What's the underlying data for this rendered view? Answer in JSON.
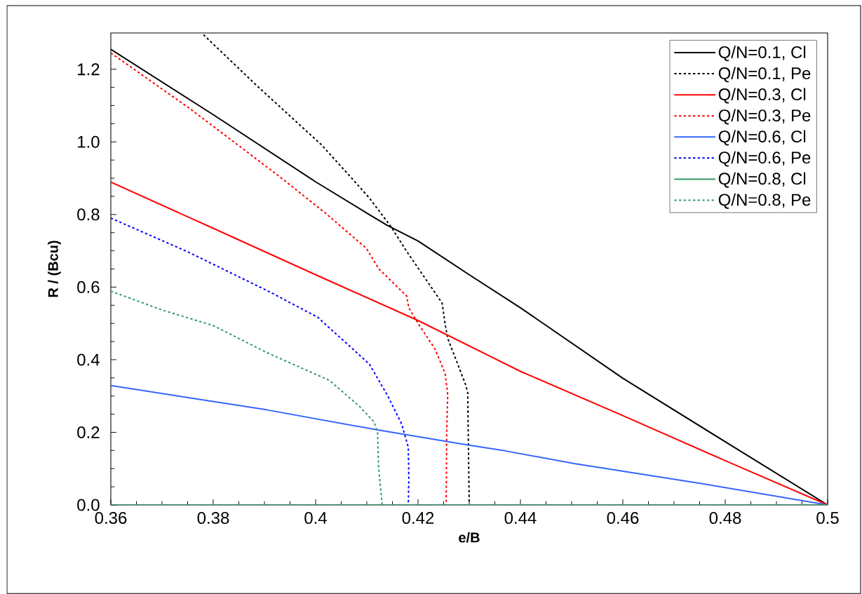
{
  "chart_data": {
    "type": "line",
    "xlabel": "e/B",
    "ylabel": "R / (Bcu)",
    "xlim": [
      0.36,
      0.5
    ],
    "ylim": [
      0,
      1.3
    ],
    "xticks": [
      0.36,
      0.38,
      0.4,
      0.42,
      0.44,
      0.46,
      0.48,
      0.5
    ],
    "yticks": [
      {
        "value": 0,
        "label": "0.0"
      },
      {
        "value": 0.2,
        "label": "0.2"
      },
      {
        "value": 0.4,
        "label": "0.4"
      },
      {
        "value": 0.6,
        "label": "0.6"
      },
      {
        "value": 0.8,
        "label": "0.8"
      },
      {
        "value": 1.0,
        "label": "1.0"
      },
      {
        "value": 1.2,
        "label": "1.2"
      }
    ],
    "grid": false,
    "legend": "top right",
    "marker": "none",
    "series": [
      {
        "name": "Q/N=0.1, Cl",
        "color": "#000000",
        "line_style": "solid",
        "x": [
          0.36,
          0.38,
          0.4,
          0.41,
          0.414,
          0.42,
          0.43,
          0.44,
          0.46,
          0.48,
          0.5
        ],
        "values": [
          1.255,
          1.075,
          0.89,
          0.804,
          0.77,
          0.727,
          0.634,
          0.543,
          0.349,
          0.174,
          0
        ]
      },
      {
        "name": "Q/N=0.1, Pe",
        "color": "#000000",
        "line_style": "dotted",
        "x": [
          0.3781,
          0.3882,
          0.401,
          0.4075,
          0.4104,
          0.4147,
          0.4178,
          0.4247,
          0.4253,
          0.4258,
          0.4292,
          0.4297,
          0.43,
          0.5
        ],
        "values": [
          1.295,
          1.159,
          0.994,
          0.893,
          0.847,
          0.767,
          0.698,
          0.556,
          0.498,
          0.459,
          0.335,
          0.31,
          0,
          0
        ]
      },
      {
        "name": "Q/N=0.3, Cl",
        "color": "#ff0000",
        "line_style": "solid",
        "x": [
          0.36,
          0.38,
          0.4,
          0.42,
          0.44,
          0.46,
          0.48,
          0.5
        ],
        "values": [
          0.889,
          0.762,
          0.634,
          0.508,
          0.368,
          0.246,
          0.122,
          0
        ]
      },
      {
        "name": "Q/N=0.3, Pe",
        "color": "#ff0000",
        "line_style": "dotted",
        "x": [
          0.36,
          0.3755,
          0.3929,
          0.4019,
          0.4099,
          0.4123,
          0.4178,
          0.4182,
          0.4201,
          0.4233,
          0.4253,
          0.4258,
          0.4256,
          0.4255,
          0.5
        ],
        "values": [
          1.245,
          1.091,
          0.905,
          0.804,
          0.707,
          0.651,
          0.575,
          0.543,
          0.498,
          0.43,
          0.362,
          0.304,
          0.2,
          0,
          0
        ]
      },
      {
        "name": "Q/N=0.6, Cl",
        "color": "#3366ff",
        "line_style": "solid",
        "x": [
          0.36,
          0.3904,
          0.4119,
          0.4297,
          0.437,
          0.4505,
          0.4749,
          0.5
        ],
        "values": [
          0.329,
          0.262,
          0.207,
          0.165,
          0.149,
          0.114,
          0.06,
          0
        ]
      },
      {
        "name": "Q/N=0.6, Pe",
        "color": "#0000ff",
        "line_style": "dotted",
        "x": [
          0.36,
          0.3749,
          0.391,
          0.4004,
          0.4105,
          0.4141,
          0.4168,
          0.4181,
          0.4182,
          0.4181,
          0.5
        ],
        "values": [
          0.79,
          0.698,
          0.587,
          0.517,
          0.388,
          0.3,
          0.223,
          0.159,
          0.072,
          0,
          0
        ]
      },
      {
        "name": "Q/N=0.8, Cl",
        "color": "#339966",
        "line_style": "solid",
        "x": [
          0.36,
          0.5
        ],
        "values": [
          0,
          0
        ]
      },
      {
        "name": "Q/N=0.8, Pe",
        "color": "#339966",
        "line_style": "dotted",
        "x": [
          0.36,
          0.37,
          0.38,
          0.3904,
          0.4027,
          0.4086,
          0.4114,
          0.4121,
          0.4123,
          0.413,
          0.5
        ],
        "values": [
          0.589,
          0.537,
          0.494,
          0.42,
          0.343,
          0.271,
          0.229,
          0.2,
          0.103,
          0,
          0
        ]
      }
    ]
  }
}
